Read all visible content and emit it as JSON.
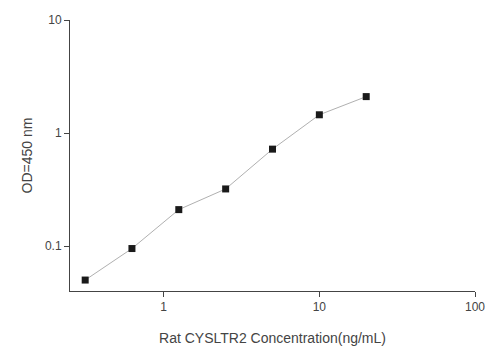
{
  "chart_data": {
    "type": "line",
    "x": [
      0.313,
      0.625,
      1.25,
      2.5,
      5,
      10,
      20
    ],
    "values": [
      0.05,
      0.095,
      0.21,
      0.32,
      0.72,
      1.45,
      2.1
    ],
    "xlabel": "Rat CYSLTR2 Concentration(ng/mL)",
    "ylabel": "OD=450 nm",
    "xlim": [
      0.25,
      100
    ],
    "ylim": [
      0.04,
      10
    ],
    "xticks": [
      1,
      10,
      100
    ],
    "yticks": [
      0.1,
      1,
      10
    ],
    "log": true,
    "grid": false,
    "color": "#b0b0b0",
    "colors": [
      "#1a1a1a",
      "#1a1a1a",
      "#1a1a1a",
      "#1a1a1a",
      "#1a1a1a",
      "#1a1a1a",
      "#1a1a1a"
    ],
    "marker": "square"
  }
}
